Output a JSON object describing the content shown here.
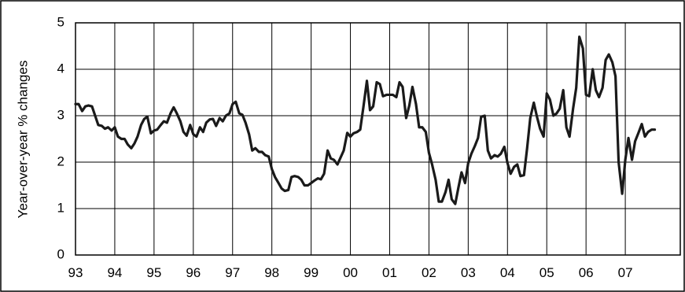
{
  "chart_data": {
    "type": "line",
    "title": "",
    "xlabel": "",
    "ylabel": "Year-over-year % changes",
    "x_tick_labels": [
      "93",
      "94",
      "95",
      "96",
      "97",
      "98",
      "99",
      "00",
      "01",
      "02",
      "03",
      "04",
      "05",
      "06",
      "07"
    ],
    "x_ticks": [
      1993,
      1994,
      1995,
      1996,
      1997,
      1998,
      1999,
      2000,
      2001,
      2002,
      2003,
      2004,
      2005,
      2006,
      2007
    ],
    "xlim": [
      1993,
      2008.4
    ],
    "y_tick_labels": [
      "0",
      "1",
      "2",
      "3",
      "4",
      "5"
    ],
    "y_ticks": [
      0,
      1,
      2,
      3,
      4,
      5
    ],
    "ylim": [
      0,
      5
    ],
    "grid": true,
    "legend": "none",
    "line_color": "#1a1a1a",
    "series": [
      {
        "values": [
          [
            1993.0,
            3.25
          ],
          [
            1993.08,
            3.25
          ],
          [
            1993.17,
            3.1
          ],
          [
            1993.25,
            3.2
          ],
          [
            1993.33,
            3.22
          ],
          [
            1993.42,
            3.2
          ],
          [
            1993.5,
            3.0
          ],
          [
            1993.58,
            2.8
          ],
          [
            1993.67,
            2.78
          ],
          [
            1993.75,
            2.72
          ],
          [
            1993.83,
            2.75
          ],
          [
            1993.92,
            2.68
          ],
          [
            1994.0,
            2.75
          ],
          [
            1994.08,
            2.55
          ],
          [
            1994.17,
            2.5
          ],
          [
            1994.25,
            2.5
          ],
          [
            1994.33,
            2.38
          ],
          [
            1994.42,
            2.3
          ],
          [
            1994.5,
            2.4
          ],
          [
            1994.58,
            2.55
          ],
          [
            1994.67,
            2.8
          ],
          [
            1994.75,
            2.93
          ],
          [
            1994.83,
            2.98
          ],
          [
            1994.92,
            2.62
          ],
          [
            1995.0,
            2.68
          ],
          [
            1995.08,
            2.7
          ],
          [
            1995.17,
            2.8
          ],
          [
            1995.25,
            2.88
          ],
          [
            1995.33,
            2.85
          ],
          [
            1995.42,
            3.05
          ],
          [
            1995.5,
            3.18
          ],
          [
            1995.58,
            3.05
          ],
          [
            1995.67,
            2.88
          ],
          [
            1995.75,
            2.65
          ],
          [
            1995.83,
            2.57
          ],
          [
            1995.92,
            2.8
          ],
          [
            1996.0,
            2.6
          ],
          [
            1996.08,
            2.55
          ],
          [
            1996.17,
            2.75
          ],
          [
            1996.25,
            2.65
          ],
          [
            1996.33,
            2.85
          ],
          [
            1996.42,
            2.92
          ],
          [
            1996.5,
            2.93
          ],
          [
            1996.58,
            2.78
          ],
          [
            1996.67,
            2.95
          ],
          [
            1996.75,
            2.88
          ],
          [
            1996.83,
            3.0
          ],
          [
            1996.92,
            3.05
          ],
          [
            1997.0,
            3.25
          ],
          [
            1997.08,
            3.3
          ],
          [
            1997.17,
            3.05
          ],
          [
            1997.25,
            3.02
          ],
          [
            1997.33,
            2.85
          ],
          [
            1997.42,
            2.6
          ],
          [
            1997.5,
            2.25
          ],
          [
            1997.58,
            2.3
          ],
          [
            1997.67,
            2.22
          ],
          [
            1997.75,
            2.22
          ],
          [
            1997.83,
            2.15
          ],
          [
            1997.92,
            2.12
          ],
          [
            1998.0,
            1.85
          ],
          [
            1998.08,
            1.68
          ],
          [
            1998.17,
            1.55
          ],
          [
            1998.25,
            1.43
          ],
          [
            1998.33,
            1.38
          ],
          [
            1998.42,
            1.4
          ],
          [
            1998.5,
            1.68
          ],
          [
            1998.58,
            1.7
          ],
          [
            1998.67,
            1.68
          ],
          [
            1998.75,
            1.62
          ],
          [
            1998.83,
            1.5
          ],
          [
            1998.92,
            1.5
          ],
          [
            1999.0,
            1.55
          ],
          [
            1999.08,
            1.6
          ],
          [
            1999.17,
            1.65
          ],
          [
            1999.25,
            1.63
          ],
          [
            1999.33,
            1.75
          ],
          [
            1999.42,
            2.25
          ],
          [
            1999.5,
            2.08
          ],
          [
            1999.58,
            2.05
          ],
          [
            1999.67,
            1.95
          ],
          [
            1999.75,
            2.1
          ],
          [
            1999.83,
            2.25
          ],
          [
            1999.92,
            2.63
          ],
          [
            2000.0,
            2.55
          ],
          [
            2000.08,
            2.62
          ],
          [
            2000.17,
            2.65
          ],
          [
            2000.25,
            2.7
          ],
          [
            2000.33,
            3.18
          ],
          [
            2000.42,
            3.75
          ],
          [
            2000.5,
            3.12
          ],
          [
            2000.58,
            3.2
          ],
          [
            2000.67,
            3.72
          ],
          [
            2000.75,
            3.68
          ],
          [
            2000.83,
            3.42
          ],
          [
            2000.92,
            3.45
          ],
          [
            2001.0,
            3.45
          ],
          [
            2001.08,
            3.45
          ],
          [
            2001.17,
            3.4
          ],
          [
            2001.25,
            3.72
          ],
          [
            2001.33,
            3.62
          ],
          [
            2001.42,
            2.95
          ],
          [
            2001.5,
            3.22
          ],
          [
            2001.58,
            3.62
          ],
          [
            2001.67,
            3.25
          ],
          [
            2001.75,
            2.75
          ],
          [
            2001.83,
            2.75
          ],
          [
            2001.92,
            2.65
          ],
          [
            2002.0,
            2.2
          ],
          [
            2002.08,
            1.95
          ],
          [
            2002.17,
            1.62
          ],
          [
            2002.25,
            1.15
          ],
          [
            2002.33,
            1.15
          ],
          [
            2002.42,
            1.35
          ],
          [
            2002.5,
            1.62
          ],
          [
            2002.58,
            1.2
          ],
          [
            2002.67,
            1.1
          ],
          [
            2002.75,
            1.45
          ],
          [
            2002.83,
            1.78
          ],
          [
            2002.92,
            1.55
          ],
          [
            2003.0,
            1.98
          ],
          [
            2003.08,
            2.18
          ],
          [
            2003.17,
            2.35
          ],
          [
            2003.25,
            2.52
          ],
          [
            2003.33,
            2.98
          ],
          [
            2003.42,
            3.0
          ],
          [
            2003.5,
            2.25
          ],
          [
            2003.58,
            2.08
          ],
          [
            2003.67,
            2.15
          ],
          [
            2003.75,
            2.12
          ],
          [
            2003.83,
            2.18
          ],
          [
            2003.92,
            2.33
          ],
          [
            2004.0,
            1.98
          ],
          [
            2004.08,
            1.75
          ],
          [
            2004.17,
            1.9
          ],
          [
            2004.25,
            1.95
          ],
          [
            2004.33,
            1.7
          ],
          [
            2004.42,
            1.72
          ],
          [
            2004.5,
            2.3
          ],
          [
            2004.58,
            2.95
          ],
          [
            2004.67,
            3.28
          ],
          [
            2004.75,
            2.98
          ],
          [
            2004.83,
            2.72
          ],
          [
            2004.92,
            2.55
          ],
          [
            2005.0,
            3.48
          ],
          [
            2005.08,
            3.35
          ],
          [
            2005.17,
            3.0
          ],
          [
            2005.25,
            3.05
          ],
          [
            2005.33,
            3.15
          ],
          [
            2005.42,
            3.55
          ],
          [
            2005.5,
            2.75
          ],
          [
            2005.58,
            2.55
          ],
          [
            2005.67,
            3.15
          ],
          [
            2005.75,
            3.6
          ],
          [
            2005.83,
            4.7
          ],
          [
            2005.92,
            4.45
          ],
          [
            2006.0,
            3.45
          ],
          [
            2006.08,
            3.42
          ],
          [
            2006.17,
            4.0
          ],
          [
            2006.25,
            3.55
          ],
          [
            2006.33,
            3.4
          ],
          [
            2006.42,
            3.6
          ],
          [
            2006.5,
            4.2
          ],
          [
            2006.58,
            4.32
          ],
          [
            2006.67,
            4.15
          ],
          [
            2006.75,
            3.85
          ],
          [
            2006.83,
            2.0
          ],
          [
            2006.92,
            1.32
          ],
          [
            2007.0,
            2.05
          ],
          [
            2007.08,
            2.52
          ],
          [
            2007.17,
            2.05
          ],
          [
            2007.25,
            2.45
          ],
          [
            2007.33,
            2.62
          ],
          [
            2007.42,
            2.82
          ],
          [
            2007.5,
            2.55
          ],
          [
            2007.58,
            2.65
          ],
          [
            2007.67,
            2.7
          ],
          [
            2007.75,
            2.7
          ]
        ]
      }
    ]
  }
}
